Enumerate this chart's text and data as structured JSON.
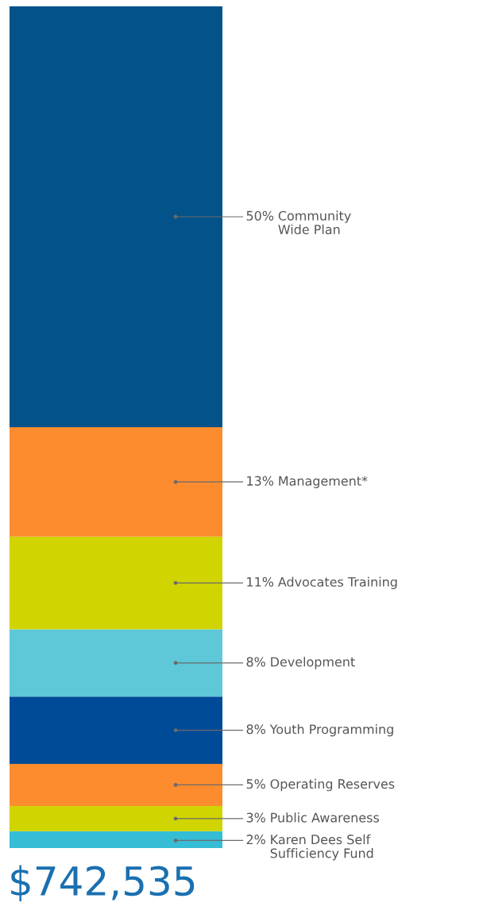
{
  "chart_data": {
    "type": "bar",
    "stacked": true,
    "categories": [
      null
    ],
    "legend": false,
    "series": [
      {
        "name": "Karen Dees Self\nSufficiency Fund",
        "color": "#35bdd5",
        "values": [
          2
        ],
        "value_labels": [
          "2%"
        ]
      },
      {
        "name": "Public Awareness",
        "color": "#d0d400",
        "values": [
          3
        ],
        "value_labels": [
          "3%"
        ]
      },
      {
        "name": "Operating Reserves",
        "color": "#fd8c2e",
        "values": [
          5
        ],
        "value_labels": [
          "5%"
        ]
      },
      {
        "name": "Youth Programming",
        "color": "#004b97",
        "values": [
          8
        ],
        "value_labels": [
          "8%"
        ]
      },
      {
        "name": "Development",
        "color": "#5ec8d9",
        "values": [
          8
        ],
        "value_labels": [
          "8%"
        ]
      },
      {
        "name": "Advocates Training",
        "color": "#d0d400",
        "values": [
          11
        ],
        "value_labels": [
          "11%"
        ]
      },
      {
        "name": "Management*",
        "color": "#fd8c2e",
        "values": [
          13
        ],
        "value_labels": [
          "13%"
        ]
      },
      {
        "name": "Community\nWide Plan",
        "color": "#03538a",
        "values": [
          50
        ],
        "value_labels": [
          "50%"
        ]
      }
    ],
    "annotations": [
      "$742,535"
    ]
  }
}
